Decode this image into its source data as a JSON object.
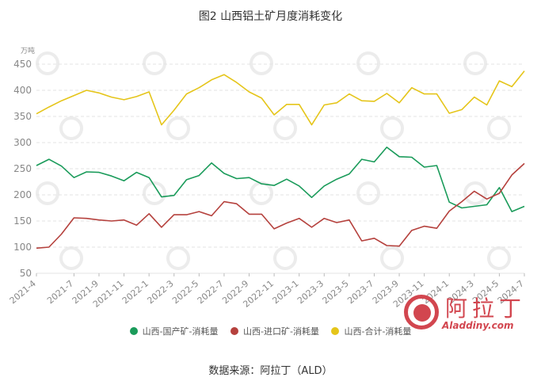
{
  "title": "图2 山西铝土矿月度消耗变化",
  "source": "数据来源：阿拉丁（ALD）",
  "logo": {
    "cn": "阿拉丁",
    "en": "Aladdiny.com"
  },
  "chart_data": {
    "type": "line",
    "title": "图2 山西铝土矿月度消耗变化",
    "ylabel": "万吨",
    "ylim": [
      50,
      450
    ],
    "yticks": [
      50,
      100,
      150,
      200,
      250,
      300,
      350,
      400,
      450
    ],
    "grid": "horizontal dashed",
    "legend_position": "bottom",
    "x": [
      "2021-4",
      "2021-5",
      "2021-6",
      "2021-7",
      "2021-8",
      "2021-9",
      "2021-10",
      "2021-11",
      "2021-12",
      "2022-1",
      "2022-2",
      "2022-3",
      "2022-4",
      "2022-5",
      "2022-6",
      "2022-7",
      "2022-8",
      "2022-9",
      "2022-10",
      "2022-11",
      "2022-12",
      "2023-1",
      "2023-2",
      "2023-3",
      "2023-4",
      "2023-5",
      "2023-6",
      "2023-7",
      "2023-8",
      "2023-9",
      "2023-10",
      "2023-11",
      "2023-12",
      "2024-1",
      "2024-2",
      "2024-3",
      "2024-4",
      "2024-5",
      "2024-6",
      "2024-7"
    ],
    "xtick_labels": [
      "2021-4",
      "2021-7",
      "2021-9",
      "2021-11",
      "2022-1",
      "2022-3",
      "2022-5",
      "2022-7",
      "2022-9",
      "2022-11",
      "2023-1",
      "2023-3",
      "2023-5",
      "2023-7",
      "2023-9",
      "2023-11",
      "2024-1",
      "2024-3",
      "2024-5",
      "2024-7"
    ],
    "series": [
      {
        "name": "山西-国产矿-消耗量",
        "color": "#1a9b5a",
        "values": [
          256,
          268,
          255,
          233,
          244,
          243,
          236,
          227,
          243,
          233,
          196,
          199,
          229,
          237,
          261,
          241,
          231,
          233,
          221,
          218,
          230,
          217,
          195,
          217,
          230,
          240,
          268,
          263,
          291,
          273,
          272,
          253,
          256,
          186,
          175,
          178,
          181,
          214,
          168,
          178
        ]
      },
      {
        "name": "山西-进口矿-消耗量",
        "color": "#b5413d",
        "values": [
          98,
          100,
          125,
          156,
          155,
          152,
          150,
          152,
          142,
          164,
          138,
          162,
          162,
          168,
          160,
          187,
          183,
          163,
          163,
          135,
          146,
          155,
          138,
          155,
          147,
          152,
          112,
          117,
          103,
          102,
          132,
          140,
          136,
          169,
          187,
          207,
          192,
          203,
          238,
          260
        ]
      },
      {
        "name": "山西-合计-消耗量",
        "color": "#e5c51a",
        "values": [
          355,
          368,
          380,
          390,
          400,
          395,
          387,
          382,
          388,
          397,
          334,
          362,
          393,
          405,
          420,
          430,
          415,
          397,
          385,
          353,
          373,
          373,
          334,
          372,
          376,
          393,
          380,
          379,
          394,
          376,
          405,
          393,
          393,
          356,
          363,
          387,
          372,
          418,
          407,
          437
        ]
      }
    ]
  }
}
